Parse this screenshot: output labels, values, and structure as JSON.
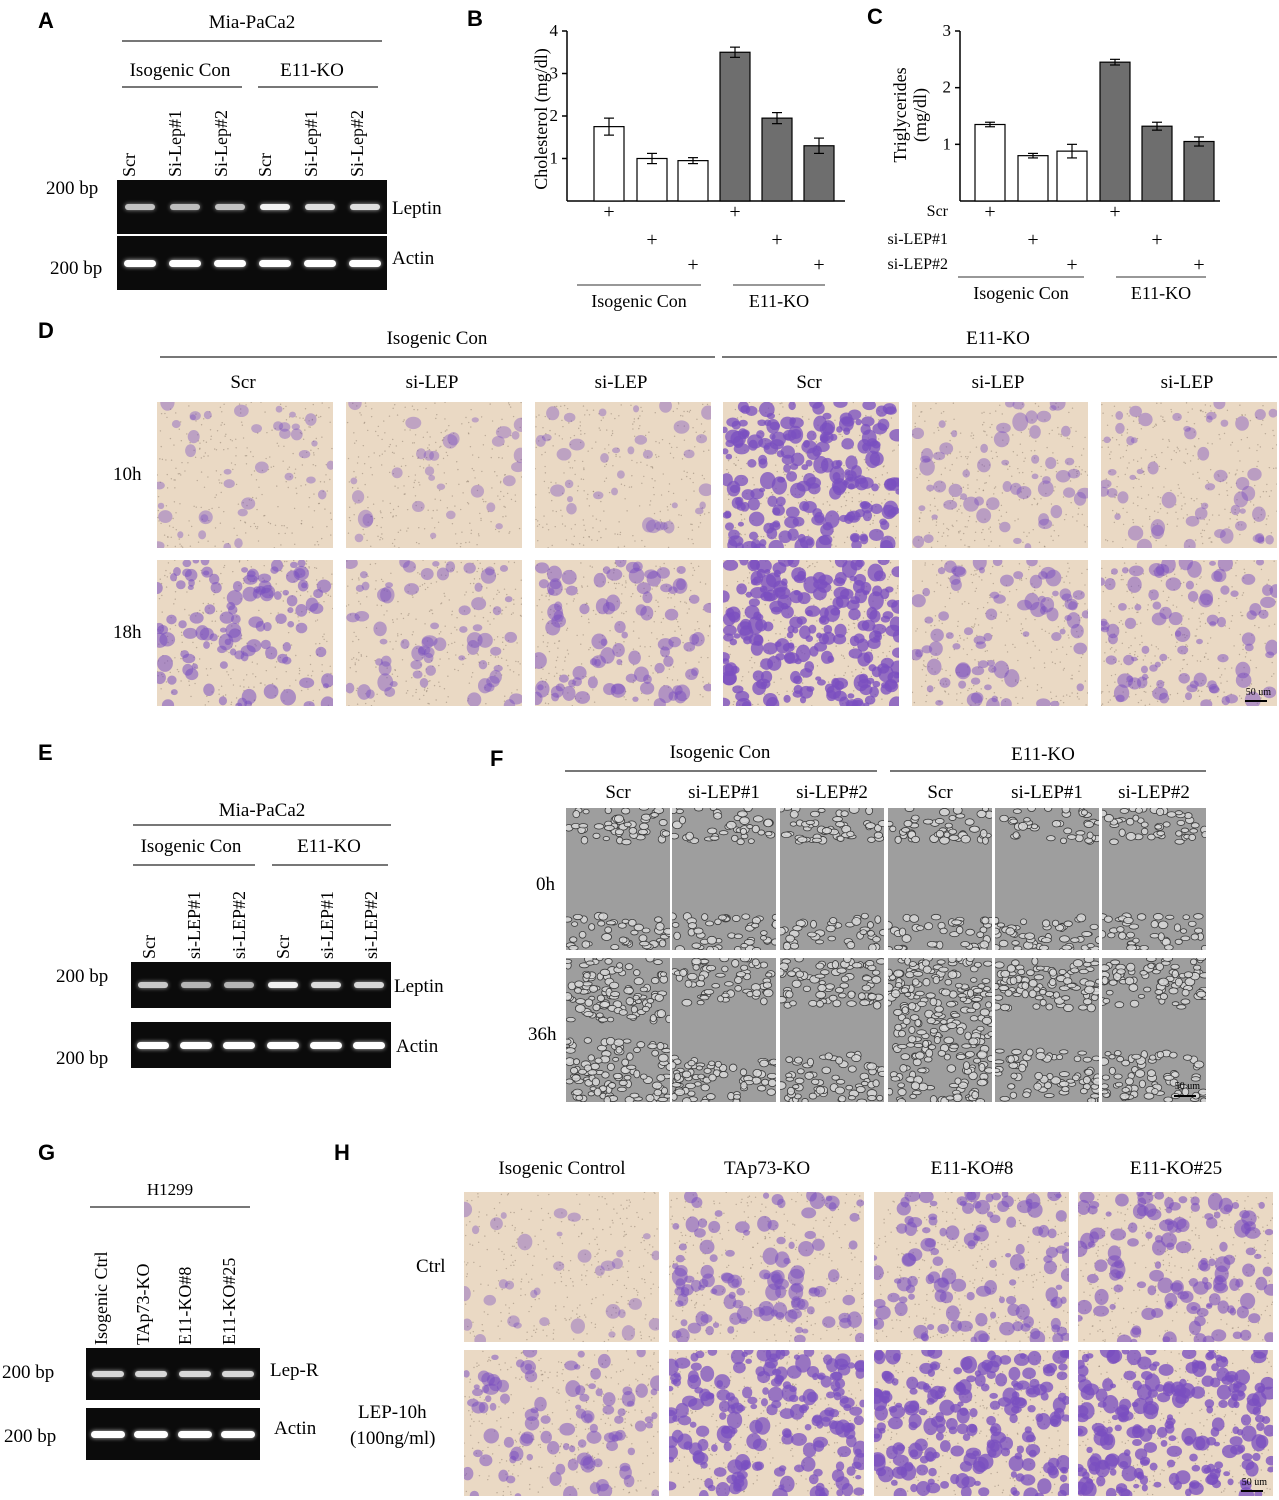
{
  "colors": {
    "gel_bg": "#0b0b0b",
    "band_weak": "#b9b9b9",
    "band_strong": "#f5f5f5",
    "bar_open": "#ffffff",
    "bar_filled": "#6e6e6e",
    "stain_bg": "#ead9c4",
    "stain_violet": "#7a4fc0",
    "wound_gray": "#9e9e9e"
  },
  "panelA": {
    "label": "A",
    "cell_line": "Mia-PaCa2",
    "group_left": "Isogenic Con",
    "group_right": "E11-KO",
    "lanes": [
      "Scr",
      "Si-Lep#1",
      "Si-Lep#2",
      "Scr",
      "Si-Lep#1",
      "Si-Lep#2"
    ],
    "marker_top": "200 bp",
    "marker_bottom": "200 bp",
    "gel_top_label": "Leptin",
    "gel_bottom_label": "Actin",
    "leptin_intensity": [
      0.55,
      0.5,
      0.55,
      0.9,
      0.75,
      0.75
    ],
    "actin_intensity": [
      1,
      1,
      1,
      1,
      1,
      1
    ]
  },
  "panelB": {
    "label": "B",
    "chart_data": {
      "type": "bar",
      "ylabel": "Cholesterol (mg/dl)",
      "ylim": [
        0,
        4
      ],
      "yticks": [
        "4",
        "3",
        "2",
        "1"
      ],
      "values": [
        1.75,
        1.0,
        0.95,
        3.5,
        1.95,
        1.3
      ],
      "errors": [
        0.2,
        0.12,
        0.07,
        0.12,
        0.13,
        0.18
      ],
      "fills": [
        "open",
        "open",
        "open",
        "filled",
        "filled",
        "filled"
      ],
      "plus_rows": [
        0,
        1,
        2,
        0,
        1,
        2
      ],
      "plus": "+",
      "group_left": "Isogenic Con",
      "group_right": "E11-KO"
    }
  },
  "panelC": {
    "label": "C",
    "chart_data": {
      "type": "bar",
      "ylabel_line1": "Triglycerides",
      "ylabel_line2": "(mg/dl)",
      "ylim": [
        0,
        3
      ],
      "yticks": [
        "3",
        "2",
        "1"
      ],
      "values": [
        1.35,
        0.8,
        0.88,
        2.45,
        1.32,
        1.05
      ],
      "errors": [
        0.04,
        0.04,
        0.12,
        0.05,
        0.07,
        0.08
      ],
      "fills": [
        "open",
        "open",
        "open",
        "filled",
        "filled",
        "filled"
      ],
      "plus_rows": [
        0,
        1,
        2,
        0,
        1,
        2
      ],
      "row_labels": [
        "Scr",
        "si-LEP#1",
        "si-LEP#2"
      ],
      "plus": "+",
      "group_left": "Isogenic Con",
      "group_right": "E11-KO"
    }
  },
  "panelD": {
    "label": "D",
    "group_left": "Isogenic Con",
    "group_right": "E11-KO",
    "columns": [
      "Scr",
      "si-LEP",
      "si-LEP",
      "Scr",
      "si-LEP",
      "si-LEP"
    ],
    "rows": [
      "10h",
      "18h"
    ],
    "scale": "50 um",
    "density": [
      [
        0.12,
        0.08,
        0.1,
        0.9,
        0.2,
        0.18
      ],
      [
        0.45,
        0.25,
        0.35,
        0.95,
        0.3,
        0.35
      ]
    ]
  },
  "panelE": {
    "label": "E",
    "cell_line": "Mia-PaCa2",
    "group_left": "Isogenic Con",
    "group_right": "E11-KO",
    "lanes": [
      "Scr",
      "si-LEP#1",
      "si-LEP#2",
      "Scr",
      "si-LEP#1",
      "si-LEP#2"
    ],
    "marker_top": "200 bp",
    "marker_bottom": "200 bp",
    "gel_top_label": "Leptin",
    "gel_bottom_label": "Actin",
    "leptin_intensity": [
      0.6,
      0.45,
      0.45,
      0.9,
      0.75,
      0.7
    ],
    "actin_intensity": [
      1,
      1,
      1,
      1,
      1,
      1
    ]
  },
  "panelF": {
    "label": "F",
    "group_left": "Isogenic Con",
    "group_right": "E11-KO",
    "columns": [
      "Scr",
      "si-LEP#1",
      "si-LEP#2",
      "Scr",
      "si-LEP#1",
      "si-LEP#2"
    ],
    "rows": [
      "0h",
      "36h"
    ],
    "scale": "50 um",
    "closure": [
      [
        0,
        0,
        0,
        0,
        0,
        0
      ],
      [
        0.75,
        0.3,
        0.35,
        1.0,
        0.45,
        0.4
      ]
    ]
  },
  "panelG": {
    "label": "G",
    "cell_line": "H1299",
    "lanes": [
      "Isogenic Ctrl",
      "TAp73-KO",
      "E11-KO#8",
      "E11-KO#25"
    ],
    "marker_top": "200 bp",
    "marker_bottom": "200 bp",
    "gel_top_label": "Lep-R",
    "gel_bottom_label": "Actin",
    "lepr_intensity": [
      0.7,
      0.7,
      0.7,
      0.7
    ],
    "actin_intensity": [
      1,
      1,
      1,
      1
    ]
  },
  "panelH": {
    "label": "H",
    "columns": [
      "Isogenic Control",
      "TAp73-KO",
      "E11-KO#8",
      "E11-KO#25"
    ],
    "row1": "Ctrl",
    "row2_line1": "LEP-10h",
    "row2_line2": "(100ng/ml)",
    "scale": "50 um",
    "density": [
      [
        0.1,
        0.45,
        0.5,
        0.55
      ],
      [
        0.4,
        0.85,
        0.9,
        0.92
      ]
    ]
  }
}
